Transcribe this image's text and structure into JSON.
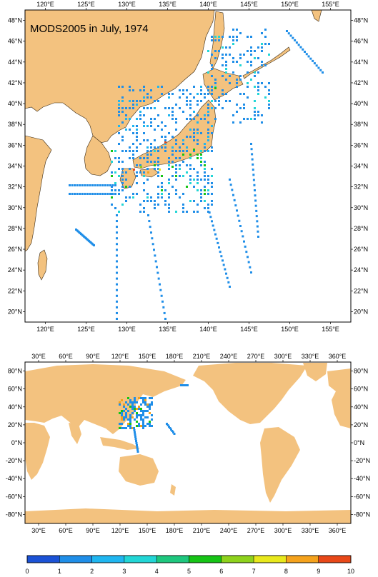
{
  "title": "MODS2005 in July, 1974",
  "colors": {
    "land": "#f3c27f",
    "sea": "#ffffff",
    "frame": "#000000",
    "scale": [
      "#1b52d6",
      "#1f8ee8",
      "#1fb6f0",
      "#22d6d6",
      "#1ec77e",
      "#16c416",
      "#8ed21c",
      "#e8e81c",
      "#f5a21c",
      "#e84818"
    ]
  },
  "top_map": {
    "x_ticks_top": [
      "120°E",
      "125°E",
      "130°E",
      "135°E",
      "140°E",
      "145°E",
      "150°E",
      "155°E"
    ],
    "x_ticks_bottom": [
      "120°E",
      "125°E",
      "130°E",
      "135°E",
      "140°E",
      "145°E",
      "150°E",
      "155°E"
    ],
    "y_ticks_left": [
      "48°N",
      "46°N",
      "44°N",
      "42°N",
      "40°N",
      "38°N",
      "36°N",
      "34°N",
      "32°N",
      "30°N",
      "28°N",
      "26°N",
      "24°N",
      "22°N",
      "20°N"
    ],
    "y_ticks_right": [
      "48°N",
      "46°N",
      "44°N",
      "42°N",
      "40°N",
      "38°N",
      "36°N",
      "34°N",
      "32°N",
      "30°N",
      "28°N",
      "26°N",
      "24°N",
      "22°N",
      "20°N"
    ]
  },
  "bottom_map": {
    "x_ticks_top": [
      "30°E",
      "60°E",
      "90°E",
      "120°E",
      "150°E",
      "180°E",
      "210°E",
      "240°E",
      "270°E",
      "300°E",
      "330°E",
      "360°E"
    ],
    "x_ticks_bottom": [
      "30°E",
      "60°E",
      "90°E",
      "120°E",
      "150°E",
      "180°E",
      "210°E",
      "240°E",
      "270°E",
      "300°E",
      "330°E",
      "360°E"
    ],
    "y_ticks_left": [
      "80°N",
      "60°N",
      "40°N",
      "20°N",
      "0°N",
      "-20°N",
      "-40°N",
      "-60°N",
      "-80°N"
    ],
    "y_ticks_right": [
      "80°N",
      "60°N",
      "40°N",
      "20°N",
      "0°N",
      "-20°N",
      "-40°N",
      "-60°N",
      "-80°N"
    ]
  },
  "colorbar": {
    "labels": [
      "0",
      "1",
      "2",
      "3",
      "4",
      "5",
      "6",
      "7",
      "8",
      "9",
      "10"
    ]
  }
}
